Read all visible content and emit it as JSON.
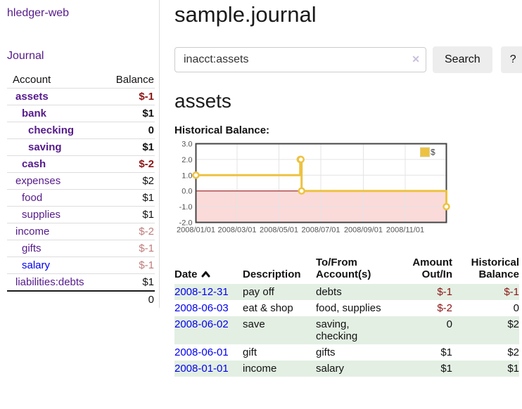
{
  "brand": "hledger-web",
  "nav": {
    "journal_label": "Journal"
  },
  "colors": {
    "link_purple": "#551A8B",
    "link_blue": "#0000EE",
    "negative_strong": "#8b1414",
    "negative_soft": "#bf7b7b",
    "row_shade_green": "#e3efe3",
    "chart_line": "#edc240",
    "chart_negative_region": "#fbdada",
    "chart_zero_line": "#8b0000"
  },
  "sidebar_table": {
    "headers": {
      "account": "Account",
      "balance": "Balance"
    },
    "rows": [
      {
        "name": "assets",
        "depth": 0,
        "bold": true,
        "link": "purple",
        "balance": "$-1"
      },
      {
        "name": "bank",
        "depth": 1,
        "bold": true,
        "link": "purple",
        "balance": "$1"
      },
      {
        "name": "checking",
        "depth": 2,
        "bold": true,
        "link": "purple",
        "balance": "0"
      },
      {
        "name": "saving",
        "depth": 2,
        "bold": true,
        "link": "purple",
        "balance": "$1"
      },
      {
        "name": "cash",
        "depth": 1,
        "bold": true,
        "link": "purple",
        "balance": "$-2"
      },
      {
        "name": "expenses",
        "depth": 0,
        "bold": false,
        "link": "purple",
        "balance": "$2"
      },
      {
        "name": "food",
        "depth": 1,
        "bold": false,
        "link": "purple",
        "balance": "$1"
      },
      {
        "name": "supplies",
        "depth": 1,
        "bold": false,
        "link": "purple",
        "balance": "$1"
      },
      {
        "name": "income",
        "depth": 0,
        "bold": false,
        "link": "purple",
        "balance": "$-2"
      },
      {
        "name": "gifts",
        "depth": 1,
        "bold": false,
        "link": "purple",
        "balance": "$-1"
      },
      {
        "name": "salary",
        "depth": 1,
        "bold": false,
        "link": "blue",
        "balance": "$-1"
      },
      {
        "name": "liabilities:debts",
        "depth": 0,
        "bold": false,
        "link": "purple",
        "balance": "$1"
      }
    ],
    "total": "0"
  },
  "header": {
    "title": "sample.journal"
  },
  "search": {
    "value": "inacct:assets",
    "clear_icon": "✕",
    "button_label": "Search",
    "help_label": "?"
  },
  "account_page": {
    "title": "assets",
    "chart_label": "Historical Balance:"
  },
  "chart_data": {
    "type": "line",
    "title": "Historical Balance",
    "step": true,
    "series": [
      {
        "name": "$",
        "color": "#edc240",
        "points": [
          {
            "date": "2008-01-01",
            "value": 1
          },
          {
            "date": "2008-06-01",
            "value": 2
          },
          {
            "date": "2008-06-02",
            "value": 2
          },
          {
            "date": "2008-06-03",
            "value": 0
          },
          {
            "date": "2008-12-31",
            "value": -1
          }
        ]
      }
    ],
    "x_range": [
      "2008-01-01",
      "2008-12-31"
    ],
    "x_ticks": [
      {
        "date": "2008-01-01",
        "label": "2008/01/01"
      },
      {
        "date": "2008-03-01",
        "label": "2008/03/01"
      },
      {
        "date": "2008-05-01",
        "label": "2008/05/01"
      },
      {
        "date": "2008-07-01",
        "label": "2008/07/01"
      },
      {
        "date": "2008-09-01",
        "label": "2008/09/01"
      },
      {
        "date": "2008-11-01",
        "label": "2008/11/01"
      }
    ],
    "y_ticks": [
      3.0,
      2.0,
      1.0,
      0.0,
      -1.0,
      -2.0
    ],
    "ylim": [
      -2,
      3
    ],
    "grid": true,
    "legend": "$",
    "legend_position": "top-right",
    "negative_fill": "#fbdada",
    "zero_line_color": "#8b0000"
  },
  "register_table": {
    "headers": {
      "date": "Date",
      "description": "Description",
      "accounts": "To/From Account(s)",
      "amount": "Amount Out/In",
      "balance": "Historical Balance"
    },
    "sort": {
      "column": "date",
      "direction": "ascending"
    },
    "rows": [
      {
        "date": "2008-12-31",
        "description": "pay off",
        "accounts": "debts",
        "amount": "$-1",
        "balance": "$-1",
        "shade": true
      },
      {
        "date": "2008-06-03",
        "description": "eat & shop",
        "accounts": "food, supplies",
        "amount": "$-2",
        "balance": "0",
        "shade": false
      },
      {
        "date": "2008-06-02",
        "description": "save",
        "accounts": "saving, checking",
        "amount": "0",
        "balance": "$2",
        "shade": true
      },
      {
        "date": "2008-06-01",
        "description": "gift",
        "accounts": "gifts",
        "amount": "$1",
        "balance": "$2",
        "shade": false
      },
      {
        "date": "2008-01-01",
        "description": "income",
        "accounts": "salary",
        "amount": "$1",
        "balance": "$1",
        "shade": true
      }
    ]
  }
}
